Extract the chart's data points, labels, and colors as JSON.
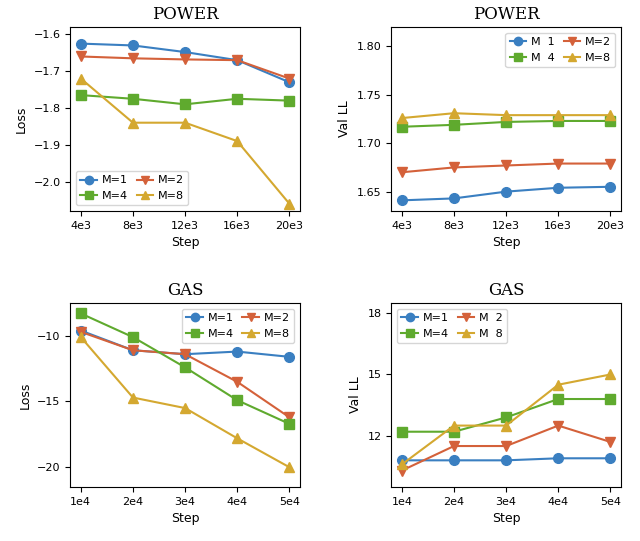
{
  "power_steps": [
    4000,
    8000,
    12000,
    16000,
    20000
  ],
  "power_loss": {
    "M1": [
      -1.625,
      -1.63,
      -1.648,
      -1.67,
      -1.73
    ],
    "M2": [
      -1.66,
      -1.665,
      -1.668,
      -1.67,
      -1.72
    ],
    "M4": [
      -1.765,
      -1.775,
      -1.79,
      -1.775,
      -1.78
    ],
    "M8": [
      -1.72,
      -1.84,
      -1.84,
      -1.89,
      -2.06
    ]
  },
  "power_loss_ylim": [
    -2.08,
    -1.58
  ],
  "power_val": {
    "M1": [
      1.641,
      1.643,
      1.65,
      1.654,
      1.655
    ],
    "M2": [
      1.67,
      1.675,
      1.677,
      1.679,
      1.679
    ],
    "M4": [
      1.717,
      1.719,
      1.722,
      1.723,
      1.723
    ],
    "M8": [
      1.726,
      1.731,
      1.729,
      1.729,
      1.729
    ]
  },
  "power_val_ylim": [
    1.63,
    1.82
  ],
  "gas_steps": [
    10000,
    20000,
    30000,
    40000,
    50000
  ],
  "gas_loss": {
    "M1": [
      -9.6,
      -11.1,
      -11.4,
      -11.2,
      -11.6
    ],
    "M2": [
      -9.7,
      -11.1,
      -11.4,
      -13.5,
      -16.2
    ],
    "M4": [
      -8.3,
      -10.1,
      -12.4,
      -14.9,
      -16.7
    ],
    "M8": [
      -10.1,
      -14.7,
      -15.5,
      -17.8,
      -20.0
    ]
  },
  "gas_loss_ylim": [
    -21.5,
    -7.5
  ],
  "gas_val": {
    "M1": [
      10.8,
      10.8,
      10.8,
      10.9,
      10.9
    ],
    "M2": [
      10.3,
      11.5,
      11.5,
      12.5,
      11.7
    ],
    "M4": [
      12.2,
      12.2,
      12.9,
      13.8,
      13.8
    ],
    "M8": [
      10.6,
      12.5,
      12.5,
      14.5,
      15.0
    ]
  },
  "gas_val_ylim": [
    9.5,
    18.5
  ],
  "colors": {
    "M1": "#3a7fc1",
    "M2": "#d4613a",
    "M4": "#5faa2e",
    "M8": "#d4a830"
  },
  "markers": {
    "M1": "o",
    "M2": "v",
    "M4": "s",
    "M8": "^"
  },
  "power_xticks": [
    "4e3",
    "8e3",
    "12e3",
    "16e3",
    "20e3"
  ],
  "gas_xticks": [
    "1e4",
    "2e4",
    "3e4",
    "4e4",
    "5e4"
  ]
}
